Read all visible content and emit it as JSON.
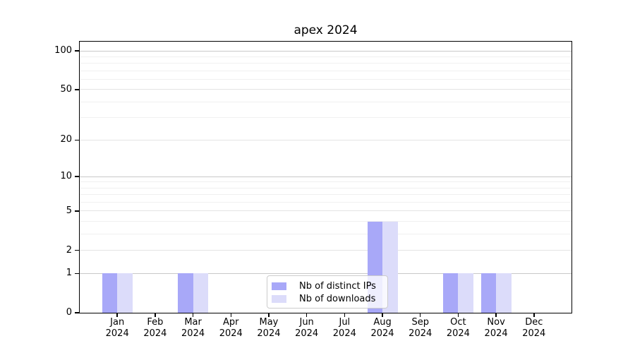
{
  "title": "apex 2024",
  "colors": {
    "background": "#ffffff",
    "text": "#000000",
    "spine": "#000000",
    "grid_major": "#c9c9c9",
    "grid_mid": "#e4e4e4",
    "grid_minor": "#f0f0f0",
    "distinct_ips_bar": "#a8a8f8",
    "downloads_bar": "#dcdcfa",
    "legend_border": "#cccccc"
  },
  "chart_data": {
    "type": "bar",
    "title": "apex 2024",
    "categories": [
      "Jan 2024",
      "Feb 2024",
      "Mar 2024",
      "Apr 2024",
      "May 2024",
      "Jun 2024",
      "Jul 2024",
      "Aug 2024",
      "Sep 2024",
      "Oct 2024",
      "Nov 2024",
      "Dec 2024"
    ],
    "series": [
      {
        "name": "Nb of distinct IPs",
        "color": "#a8a8f8",
        "values": [
          1,
          0,
          1,
          0,
          0,
          0,
          0,
          4,
          0,
          1,
          1,
          0
        ]
      },
      {
        "name": "Nb of downloads",
        "color": "#dcdcfa",
        "values": [
          1,
          0,
          1,
          0,
          0,
          0,
          0,
          4,
          0,
          1,
          1,
          0
        ]
      }
    ],
    "xlabel": "",
    "ylabel": "",
    "yscale": "log1p",
    "ylim": [
      0,
      100
    ],
    "y_ticks": [
      0,
      1,
      2,
      5,
      10,
      20,
      50,
      100
    ],
    "grid": true,
    "legend_position": "lower center"
  }
}
